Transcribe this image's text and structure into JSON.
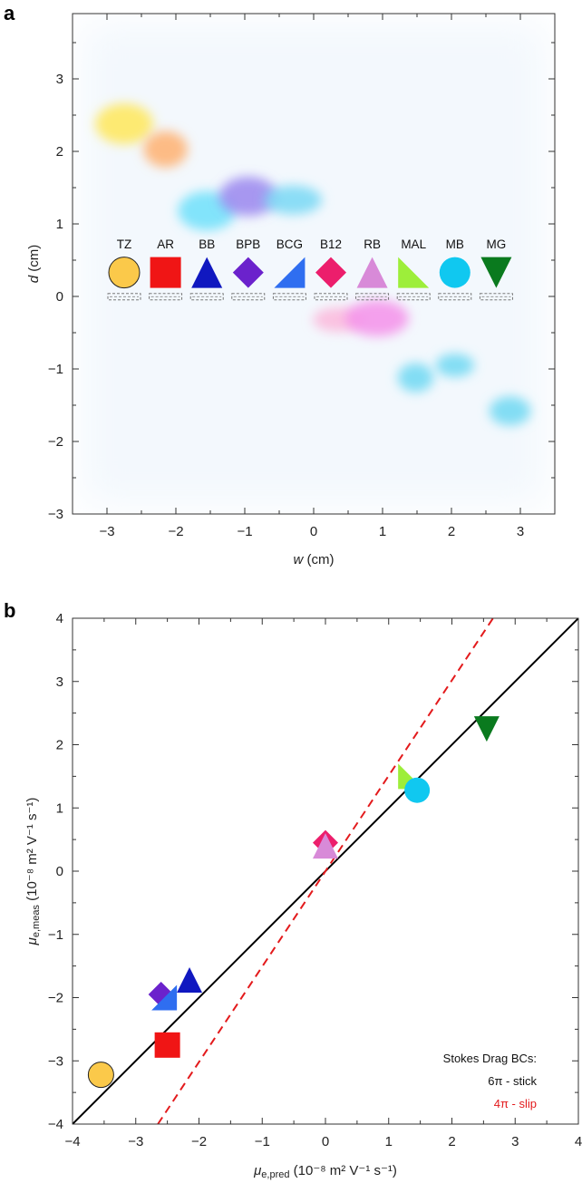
{
  "panel_a_label": "a",
  "panel_b_label": "b",
  "colors": {
    "TZ": "#fbc94a",
    "AR": "#f01515",
    "BB": "#1018c0",
    "BPB": "#6b22cc",
    "BCG": "#2f6ef0",
    "B12": "#ec1e6c",
    "RB": "#d88ad8",
    "MAL": "#9dee3a",
    "MB": "#10c8f0",
    "MG": "#0a7a1e",
    "stick_line": "#000000",
    "slip_line": "#e31a1c"
  },
  "chart_data": [
    {
      "type": "scatter",
      "panel": "a",
      "xlabel_var": "w",
      "xlabel_unit": " (cm)",
      "ylabel_var": "d",
      "ylabel_unit": " (cm)",
      "xlim": [
        -3.5,
        3.5
      ],
      "ylim": [
        -3,
        3.9
      ],
      "xticks": [
        "−3",
        "−2",
        "−1",
        "0",
        "1",
        "2",
        "3"
      ],
      "yticks": [
        "−3",
        "−2",
        "−1",
        "0",
        "1",
        "2",
        "3"
      ],
      "spots": [
        {
          "dye": "TZ",
          "w": -2.75,
          "d": 2.38,
          "color": "#ffe85a",
          "rw": 0.42,
          "rh": 0.28
        },
        {
          "dye": "AR",
          "w": -2.15,
          "d": 2.03,
          "color": "#ffb070",
          "rw": 0.32,
          "rh": 0.25
        },
        {
          "dye": "BB",
          "w": -1.55,
          "d": 1.18,
          "color": "#6fe0fa",
          "rw": 0.42,
          "rh": 0.27
        },
        {
          "dye": "BPB",
          "w": -0.95,
          "d": 1.38,
          "color": "#9a86ee",
          "rw": 0.42,
          "rh": 0.27
        },
        {
          "dye": "BCG",
          "w": -0.3,
          "d": 1.33,
          "color": "#78d8f5",
          "rw": 0.42,
          "rh": 0.2
        },
        {
          "dye": "B12",
          "w": 0.35,
          "d": -0.32,
          "color": "#fbb8dc",
          "rw": 0.36,
          "rh": 0.17
        },
        {
          "dye": "RB",
          "w": 0.92,
          "d": -0.3,
          "color": "#f590ea",
          "rw": 0.46,
          "rh": 0.25
        },
        {
          "dye": "MAL",
          "w": 1.48,
          "d": -1.12,
          "color": "#6fd8f2",
          "rw": 0.26,
          "rh": 0.2
        },
        {
          "dye": "MB",
          "w": 2.05,
          "d": -0.95,
          "color": "#6fd8f2",
          "rw": 0.28,
          "rh": 0.16
        },
        {
          "dye": "MG",
          "w": 2.85,
          "d": -1.58,
          "color": "#6fd8f2",
          "rw": 0.3,
          "rh": 0.2
        }
      ],
      "legend": [
        {
          "label": "TZ",
          "shape": "circle"
        },
        {
          "label": "AR",
          "shape": "square"
        },
        {
          "label": "BB",
          "shape": "triangle-up"
        },
        {
          "label": "BPB",
          "shape": "diamond"
        },
        {
          "label": "BCG",
          "shape": "wedge-right"
        },
        {
          "label": "B12",
          "shape": "diamond"
        },
        {
          "label": "RB",
          "shape": "triangle-up"
        },
        {
          "label": "MAL",
          "shape": "wedge-left"
        },
        {
          "label": "MB",
          "shape": "circle"
        },
        {
          "label": "MG",
          "shape": "triangle-down"
        }
      ]
    },
    {
      "type": "scatter",
      "panel": "b",
      "xlabel_var": "μ",
      "xlabel_sub": "e,pred",
      "xlabel_unit": " (10⁻⁸ m² V⁻¹ s⁻¹)",
      "ylabel_var": "μ",
      "ylabel_sub": "e,meas",
      "ylabel_unit": " (10⁻⁸ m² V⁻¹ s⁻¹)",
      "xlim": [
        -4,
        4
      ],
      "ylim": [
        -4,
        4
      ],
      "xticks": [
        "−4",
        "−3",
        "−2",
        "−1",
        "0",
        "1",
        "2",
        "3",
        "4"
      ],
      "yticks": [
        "−4",
        "−3",
        "−2",
        "−1",
        "0",
        "1",
        "2",
        "3",
        "4"
      ],
      "points": [
        {
          "dye": "TZ",
          "x": -3.55,
          "y": -3.22,
          "shape": "circle"
        },
        {
          "dye": "AR",
          "x": -2.5,
          "y": -2.75,
          "shape": "square"
        },
        {
          "dye": "BB",
          "x": -2.15,
          "y": -1.72,
          "shape": "triangle-up"
        },
        {
          "dye": "BPB",
          "x": -2.6,
          "y": -1.95,
          "shape": "diamond"
        },
        {
          "dye": "BCG",
          "x": -2.55,
          "y": -2.0,
          "shape": "wedge-right"
        },
        {
          "dye": "B12",
          "x": 0.0,
          "y": 0.45,
          "shape": "diamond"
        },
        {
          "dye": "RB",
          "x": 0.0,
          "y": 0.4,
          "shape": "triangle-up"
        },
        {
          "dye": "MAL",
          "x": 1.35,
          "y": 1.5,
          "shape": "wedge-left"
        },
        {
          "dye": "MB",
          "x": 1.45,
          "y": 1.28,
          "shape": "circle"
        },
        {
          "dye": "MG",
          "x": 2.55,
          "y": 2.25,
          "shape": "triangle-down"
        }
      ],
      "lines": [
        {
          "name": "6π - stick",
          "x": [
            -4,
            4
          ],
          "y": [
            -4,
            4
          ],
          "style": "solid"
        },
        {
          "name": "4π - slip",
          "x": [
            -2.65,
            2.65
          ],
          "y": [
            -4,
            4
          ],
          "style": "dashed"
        }
      ],
      "legend_title": "Stokes Drag BCs:",
      "legend_position": "bottom-right"
    }
  ]
}
